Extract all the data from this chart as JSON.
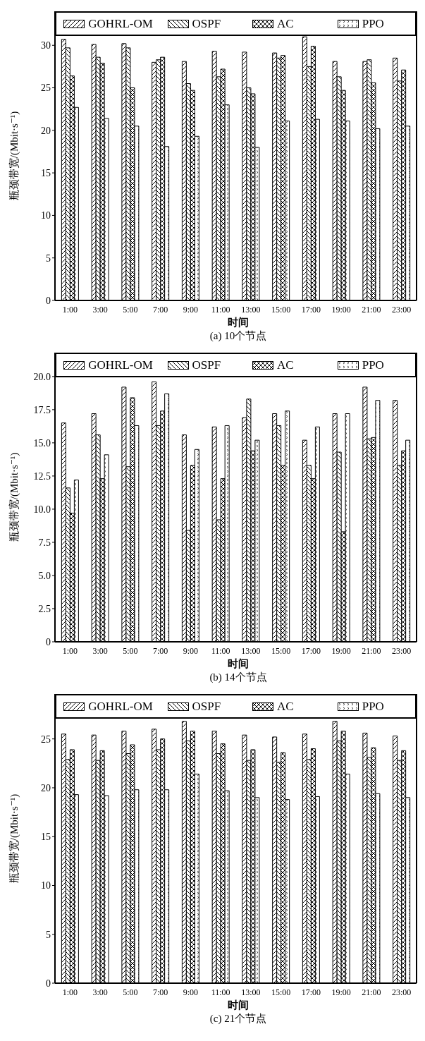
{
  "chart_data": [
    {
      "type": "bar",
      "title": "(a) 10个节点",
      "xlabel": "时间",
      "ylabel": "瓶颈带宽/(Mbit·s⁻¹)",
      "categories": [
        "1:00",
        "3:00",
        "5:00",
        "7:00",
        "9:00",
        "11:00",
        "13:00",
        "15:00",
        "17:00",
        "19:00",
        "21:00",
        "23:00"
      ],
      "series": [
        {
          "name": "GOHRL-OM",
          "color": "#000000",
          "values": [
            30.7,
            30.1,
            30.2,
            28.0,
            28.1,
            29.3,
            29.2,
            29.1,
            31.0,
            28.1,
            28.1,
            28.5
          ]
        },
        {
          "name": "OSPF",
          "color": "#000000",
          "values": [
            29.7,
            28.6,
            29.7,
            28.3,
            25.5,
            26.3,
            25.0,
            28.5,
            27.5,
            26.3,
            28.3,
            25.8
          ]
        },
        {
          "name": "AC",
          "color": "#000000",
          "values": [
            26.4,
            27.9,
            25.0,
            28.6,
            24.7,
            27.2,
            24.3,
            28.8,
            29.9,
            24.7,
            25.6,
            27.1
          ]
        },
        {
          "name": "PPO",
          "color": "#000000",
          "values": [
            22.7,
            21.4,
            20.5,
            18.1,
            19.3,
            23.0,
            18.0,
            21.1,
            21.3,
            21.1,
            20.2,
            20.5
          ]
        }
      ],
      "ylim": [
        0,
        34
      ],
      "yticks": [
        0,
        5,
        10,
        15,
        20,
        25,
        30
      ],
      "grid": false,
      "legend": "top"
    },
    {
      "type": "bar",
      "title": "(b) 14个节点",
      "xlabel": "时间",
      "ylabel": "瓶颈带宽/(Mbit·s⁻¹)",
      "categories": [
        "1:00",
        "3:00",
        "5:00",
        "7:00",
        "9:00",
        "11:00",
        "13:00",
        "15:00",
        "17:00",
        "19:00",
        "21:00",
        "23:00"
      ],
      "series": [
        {
          "name": "GOHRL-OM",
          "color": "#000000",
          "values": [
            16.5,
            17.2,
            19.2,
            19.6,
            15.6,
            16.2,
            16.9,
            17.2,
            15.2,
            17.2,
            19.2,
            18.2
          ]
        },
        {
          "name": "OSPF",
          "color": "#000000",
          "values": [
            11.6,
            15.6,
            13.2,
            16.3,
            8.4,
            9.2,
            18.3,
            16.3,
            13.3,
            14.3,
            15.3,
            13.3
          ]
        },
        {
          "name": "AC",
          "color": "#000000",
          "values": [
            9.7,
            12.3,
            18.4,
            17.4,
            13.3,
            12.3,
            14.4,
            13.3,
            12.3,
            8.3,
            15.4,
            14.4
          ]
        },
        {
          "name": "PPO",
          "color": "#000000",
          "values": [
            12.2,
            14.1,
            16.3,
            18.7,
            14.5,
            16.3,
            15.2,
            17.4,
            16.2,
            17.2,
            18.2,
            15.2
          ]
        }
      ],
      "ylim": [
        0,
        21.8
      ],
      "yticks": [
        0,
        2.5,
        {
          "value": 5,
          "label": "5.0"
        },
        7.5,
        {
          "value": 10,
          "label": "10.0"
        },
        12.5,
        {
          "value": 15,
          "label": "15.0"
        },
        17.5,
        {
          "value": 20,
          "label": "20.0"
        }
      ],
      "grid": false,
      "legend": "top"
    },
    {
      "type": "bar",
      "title": "(c) 21个节点",
      "xlabel": "时间",
      "ylabel": "瓶颈带宽/(Mbit·s⁻¹)",
      "categories": [
        "1:00",
        "3:00",
        "5:00",
        "7:00",
        "9:00",
        "11:00",
        "13:00",
        "15:00",
        "17:00",
        "19:00",
        "21:00",
        "23:00"
      ],
      "series": [
        {
          "name": "GOHRL-OM",
          "color": "#000000",
          "values": [
            25.5,
            25.4,
            25.8,
            26.0,
            26.8,
            25.8,
            25.4,
            25.2,
            25.5,
            26.8,
            25.6,
            25.3
          ]
        },
        {
          "name": "OSPF",
          "color": "#000000",
          "values": [
            22.9,
            22.8,
            23.5,
            23.9,
            24.8,
            23.5,
            22.8,
            22.6,
            22.9,
            24.8,
            23.1,
            22.8
          ]
        },
        {
          "name": "AC",
          "color": "#000000",
          "values": [
            23.9,
            23.8,
            24.4,
            25.0,
            25.8,
            24.5,
            23.9,
            23.6,
            24.0,
            25.8,
            24.1,
            23.8
          ]
        },
        {
          "name": "PPO",
          "color": "#000000",
          "values": [
            19.3,
            19.2,
            19.8,
            19.8,
            21.4,
            19.7,
            19.0,
            18.8,
            19.1,
            21.4,
            19.4,
            19.0
          ]
        }
      ],
      "ylim": [
        0,
        29.6
      ],
      "yticks": [
        0,
        5,
        10,
        15,
        20,
        25
      ],
      "grid": false,
      "legend": "top"
    }
  ]
}
